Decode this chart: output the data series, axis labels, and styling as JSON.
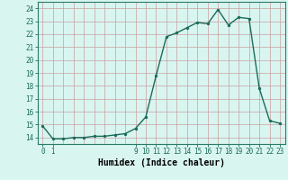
{
  "x": [
    0,
    1,
    2,
    3,
    4,
    5,
    6,
    7,
    8,
    9,
    10,
    11,
    12,
    13,
    14,
    15,
    16,
    17,
    18,
    19,
    20,
    21,
    22,
    23
  ],
  "y": [
    14.9,
    13.9,
    13.9,
    14.0,
    14.0,
    14.1,
    14.1,
    14.2,
    14.3,
    14.7,
    15.6,
    18.8,
    21.8,
    22.1,
    22.5,
    22.9,
    22.8,
    23.9,
    22.7,
    23.3,
    23.2,
    17.8,
    15.3,
    15.1
  ],
  "line_color": "#1a6b5a",
  "marker_color": "#1a6b5a",
  "bg_color": "#d9f5f0",
  "grid_color": "#c8a0a0",
  "xlabel": "Humidex (Indice chaleur)",
  "xlim": [
    -0.5,
    23.5
  ],
  "ylim": [
    13.5,
    24.5
  ],
  "yticks": [
    14,
    15,
    16,
    17,
    18,
    19,
    20,
    21,
    22,
    23,
    24
  ],
  "xticks": [
    0,
    1,
    9,
    10,
    11,
    12,
    13,
    14,
    15,
    16,
    17,
    18,
    19,
    20,
    21,
    22,
    23
  ],
  "tick_fontsize": 5.5,
  "label_fontsize": 7
}
